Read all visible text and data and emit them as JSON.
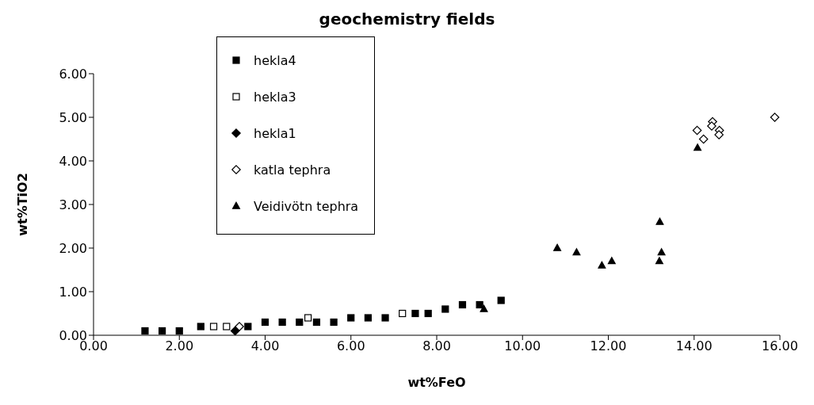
{
  "chart_data": {
    "type": "scatter",
    "title": "geochemistry fields",
    "xlabel": "wt%FeO",
    "ylabel": "wt%TiO2",
    "xlim": [
      0,
      16
    ],
    "ylim": [
      0,
      6
    ],
    "xticks": [
      {
        "value": 0,
        "label": "0.00"
      },
      {
        "value": 2,
        "label": "2.00"
      },
      {
        "value": 4,
        "label": "4.00"
      },
      {
        "value": 6,
        "label": "6.00"
      },
      {
        "value": 8,
        "label": "8.00"
      },
      {
        "value": 10,
        "label": "10.00"
      },
      {
        "value": 12,
        "label": "12.00"
      },
      {
        "value": 14,
        "label": "14.00"
      },
      {
        "value": 16,
        "label": "16.00"
      }
    ],
    "yticks": [
      {
        "value": 0,
        "label": "0.00"
      },
      {
        "value": 1,
        "label": "1.00"
      },
      {
        "value": 2,
        "label": "2.00"
      },
      {
        "value": 3,
        "label": "3.00"
      },
      {
        "value": 4,
        "label": "4.00"
      },
      {
        "value": 5,
        "label": "5.00"
      },
      {
        "value": 6,
        "label": "6.00"
      }
    ],
    "legend": "top left",
    "series": [
      {
        "name": "hekla4",
        "color": "#000000",
        "marker": "square",
        "x": [
          1.2,
          1.6,
          2.0,
          2.5,
          3.6,
          4.0,
          4.4,
          4.8,
          5.2,
          5.6,
          6.0,
          6.4,
          6.8,
          7.5,
          7.8,
          8.2,
          8.6,
          9.0,
          9.5
        ],
        "values": [
          0.1,
          0.1,
          0.1,
          0.2,
          0.2,
          0.3,
          0.3,
          0.3,
          0.3,
          0.3,
          0.4,
          0.4,
          0.4,
          0.5,
          0.5,
          0.6,
          0.7,
          0.7,
          0.8
        ]
      },
      {
        "name": "hekla3",
        "color": "#ffffff",
        "marker": "square",
        "x": [
          2.8,
          3.1,
          5.0,
          7.2
        ],
        "values": [
          0.2,
          0.2,
          0.4,
          0.5
        ]
      },
      {
        "name": "hekla1",
        "color": "#000000",
        "marker": "diamond",
        "x": [
          3.3
        ],
        "values": [
          0.1
        ]
      },
      {
        "name": "katla tephra",
        "color": "#ffffff",
        "marker": "diamond",
        "x": [
          3.4,
          14.07,
          14.22,
          14.43,
          14.41,
          14.59,
          14.58,
          15.88
        ],
        "values": [
          0.2,
          4.7,
          4.5,
          4.9,
          4.8,
          4.7,
          4.6,
          5.0
        ]
      },
      {
        "name": "Veidivötn tephra",
        "color": "#000000",
        "marker": "triangle",
        "x": [
          9.1,
          10.81,
          11.26,
          11.85,
          12.08,
          13.2,
          13.24,
          13.19,
          14.08
        ],
        "values": [
          0.6,
          2.0,
          1.9,
          1.6,
          1.7,
          2.6,
          1.9,
          1.7,
          4.3
        ]
      }
    ]
  }
}
